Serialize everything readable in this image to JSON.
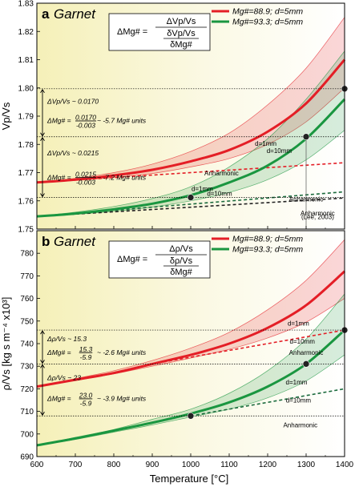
{
  "chart_data": [
    {
      "type": "line",
      "panel_label": "a",
      "panel_title": "Garnet",
      "ylabel": "Vp/Vs",
      "xlim": [
        600,
        1400
      ],
      "ylim": [
        1.75,
        1.83
      ],
      "x_ticks": [
        "600",
        "700",
        "800",
        "900",
        "1000",
        "1100",
        "1200",
        "1300",
        "1400"
      ],
      "y_ticks": [
        "1.75",
        "1.76",
        "1.77",
        "1.78",
        "1.79",
        "1.80",
        "1.81",
        "1.82",
        "1.83"
      ],
      "legend": [
        "Mg#=88.9; d=5mm",
        "Mg#=93.3; d=5mm"
      ],
      "formula": {
        "lhs": "ΔMg# =",
        "num": "ΔVp/Vs",
        "den_top": "δVp/Vs",
        "den_bot": "δMg#"
      },
      "series": [
        {
          "name": "Mg#=88.9; d=5mm",
          "color": "#e41e26",
          "x": [
            600,
            700,
            800,
            900,
            1000,
            1100,
            1200,
            1300,
            1400
          ],
          "y": [
            1.7665,
            1.7675,
            1.769,
            1.771,
            1.774,
            1.778,
            1.7845,
            1.7945,
            1.81
          ]
        },
        {
          "name": "Mg#=93.3; d=5mm",
          "color": "#1a9640",
          "x": [
            600,
            700,
            800,
            900,
            1000,
            1100,
            1200,
            1300,
            1400
          ],
          "y": [
            1.7545,
            1.7555,
            1.757,
            1.759,
            1.762,
            1.7665,
            1.7725,
            1.782,
            1.796
          ]
        }
      ],
      "bands": [
        {
          "color": "#e41e26",
          "x": [
            600,
            700,
            800,
            900,
            1000,
            1100,
            1200,
            1300,
            1400
          ],
          "upper": [
            1.7665,
            1.768,
            1.77,
            1.773,
            1.7775,
            1.784,
            1.794,
            1.807,
            1.825
          ],
          "lower": [
            1.7665,
            1.7672,
            1.7683,
            1.7697,
            1.772,
            1.775,
            1.78,
            1.788,
            1.8
          ]
        },
        {
          "color": "#1a9640",
          "x": [
            600,
            700,
            800,
            900,
            1000,
            1100,
            1200,
            1300,
            1400
          ],
          "upper": [
            1.7545,
            1.756,
            1.758,
            1.7608,
            1.765,
            1.772,
            1.782,
            1.796,
            1.813
          ],
          "lower": [
            1.7545,
            1.7552,
            1.7563,
            1.7578,
            1.76,
            1.763,
            1.7675,
            1.7745,
            1.785
          ]
        }
      ],
      "anharmonic": [
        {
          "color": "#e41e26",
          "x": [
            600,
            1400
          ],
          "y": [
            1.7665,
            1.7735
          ]
        },
        {
          "color": "#1a6a3c",
          "x": [
            600,
            1400
          ],
          "y": [
            1.7545,
            1.7632
          ]
        },
        {
          "color": "#222222",
          "x": [
            600,
            1400
          ],
          "y": [
            1.7545,
            1.761
          ]
        }
      ],
      "points": [
        {
          "x": 1000,
          "y": 1.7612
        },
        {
          "x": 1300,
          "y": 1.7827
        },
        {
          "x": 1400,
          "y": 1.7997
        }
      ],
      "ref_lines": [
        1.7997,
        1.7827,
        1.7612
      ],
      "vline_x": 1300,
      "brackets": [
        {
          "y_top": 1.7997,
          "y_bot": 1.7827,
          "line1": "ΔVp/Vs ~ 0.0170",
          "lhs": "ΔMg# =",
          "num": "0.0170",
          "den": "-0.003",
          "rest": "~ -5.7 Mg# units"
        },
        {
          "y_top": 1.7827,
          "y_bot": 1.7612,
          "line1": "ΔVp/Vs ~ 0.0215",
          "lhs": "ΔMg# =",
          "num": "0.0215",
          "den": "-0.003",
          "rest": "~ -7.2 Mg# units"
        }
      ],
      "labels": [
        {
          "text": "d=1mm",
          "x": 1195,
          "y": 1.7795
        },
        {
          "text": "d=10mm",
          "x": 1230,
          "y": 1.777
        },
        {
          "text": "Anharmonic",
          "x": 1080,
          "y": 1.769
        },
        {
          "text": "d=1mm",
          "x": 1030,
          "y": 1.7635
        },
        {
          "text": "d=10mm",
          "x": 1075,
          "y": 1.7618
        },
        {
          "text": "Anharmonic",
          "x": 1300,
          "y": 1.7598
        },
        {
          "text": "Anharmonic",
          "x": 1330,
          "y": 1.7548
        },
        {
          "text": "(Lee, 2003)",
          "x": 1330,
          "y": 1.7535
        }
      ]
    },
    {
      "type": "line",
      "panel_label": "b",
      "panel_title": "Garnet",
      "ylabel": "ρ/Vs [kg s m⁻⁴ x10³]",
      "xlabel": "Temperature [°C]",
      "xlim": [
        600,
        1400
      ],
      "ylim": [
        690,
        790
      ],
      "x_ticks": [
        "600",
        "700",
        "800",
        "900",
        "1000",
        "1100",
        "1200",
        "1300",
        "1400"
      ],
      "y_ticks": [
        "690",
        "700",
        "710",
        "720",
        "730",
        "740",
        "750",
        "760",
        "770",
        "780"
      ],
      "legend": [
        "Mg#=88.9; d=5mm",
        "Mg#=93.3; d=5mm"
      ],
      "formula": {
        "lhs": "ΔMg# =",
        "num": "Δρ/Vs",
        "den_top": "δρ/Vs",
        "den_bot": "δMg#"
      },
      "series": [
        {
          "name": "Mg#=88.9; d=5mm",
          "color": "#e41e26",
          "x": [
            600,
            700,
            800,
            900,
            1000,
            1100,
            1200,
            1300,
            1400
          ],
          "y": [
            721,
            724,
            727,
            731,
            735,
            740,
            747,
            757,
            772
          ]
        },
        {
          "name": "Mg#=93.3; d=5mm",
          "color": "#1a9640",
          "x": [
            600,
            700,
            800,
            900,
            1000,
            1100,
            1200,
            1300,
            1400
          ],
          "y": [
            695,
            698,
            701.5,
            705,
            709,
            714,
            721,
            731,
            746
          ]
        }
      ],
      "bands": [
        {
          "color": "#e41e26",
          "x": [
            600,
            700,
            800,
            900,
            1000,
            1100,
            1200,
            1300,
            1400
          ],
          "upper": [
            721,
            724.5,
            728,
            732.5,
            738,
            745,
            755,
            768,
            786
          ]
        },
        {
          "color": "#1a9640",
          "x": [
            600,
            700,
            800,
            900,
            1000,
            1100,
            1200,
            1300,
            1400
          ],
          "upper": [
            695,
            698.5,
            702,
            706.5,
            711,
            718,
            728,
            742,
            762
          ]
        }
      ],
      "bands_lower": [
        [
          721,
          723.7,
          726.6,
          730,
          733.6,
          737.5,
          742.5,
          749.5,
          760
        ],
        [
          695,
          697.6,
          700.8,
          704,
          707.5,
          711,
          716,
          723.5,
          735
        ]
      ],
      "anharmonic": [
        {
          "color": "#e41e26",
          "x": [
            900,
            1400
          ],
          "y": [
            731,
            746
          ]
        },
        {
          "color": "#1a6a3c",
          "x": [
            1000,
            1400
          ],
          "y": [
            708,
            720
          ]
        }
      ],
      "points": [
        {
          "x": 1000,
          "y": 708
        },
        {
          "x": 1300,
          "y": 731
        },
        {
          "x": 1400,
          "y": 746
        }
      ],
      "ref_lines": [
        746,
        731,
        708
      ],
      "brackets": [
        {
          "y_top": 746,
          "y_bot": 731,
          "line1": "Δρ/Vs ~ 15.3",
          "lhs": "ΔMg# =",
          "num": "15.3",
          "den": "-5.9",
          "rest": "~ -2.6 Mg# units"
        },
        {
          "y_top": 731,
          "y_bot": 708,
          "line1": "Δρ/Vs ~ 23",
          "lhs": "ΔMg# =",
          "num": "23.0",
          "den": "-5.9",
          "rest": "~ -3.9 Mg# units"
        }
      ],
      "labels": [
        {
          "text": "d=1mm",
          "x": 1280,
          "y": 748
        },
        {
          "text": "d=10mm",
          "x": 1290,
          "y": 740
        },
        {
          "text": "Anharmonic",
          "x": 1300,
          "y": 735
        },
        {
          "text": "d=1mm",
          "x": 1275,
          "y": 722
        },
        {
          "text": "d=10mm",
          "x": 1280,
          "y": 714
        },
        {
          "text": "Anharmonic",
          "x": 1285,
          "y": 703
        }
      ]
    }
  ]
}
